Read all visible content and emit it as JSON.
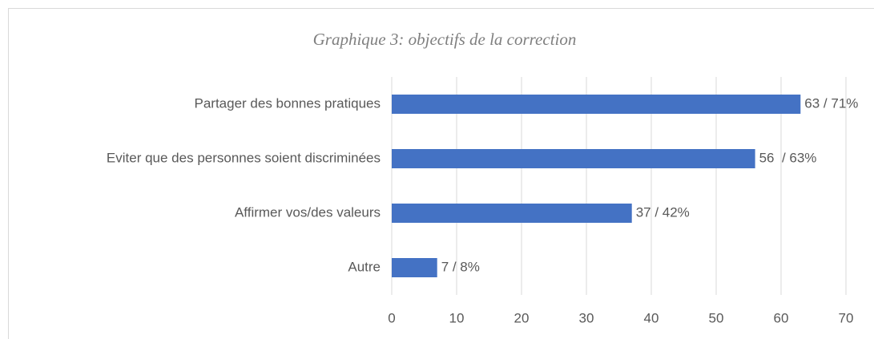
{
  "chart_data": {
    "type": "bar",
    "orientation": "horizontal",
    "title": "Graphique 3: objectifs de la correction",
    "categories": [
      "Partager des bonnes pratiques",
      "Eviter que des personnes soient discriminées",
      "Affirmer vos/des valeurs",
      "Autre"
    ],
    "values": [
      63,
      56,
      37,
      7
    ],
    "value_labels": [
      "63 / 71%",
      "56  / 63%",
      "37 / 42%",
      "7 / 8%"
    ],
    "color": "#4472c4",
    "xlim": [
      0,
      70
    ],
    "xticks": [
      0,
      10,
      20,
      30,
      40,
      50,
      60,
      70
    ],
    "grid": true
  }
}
